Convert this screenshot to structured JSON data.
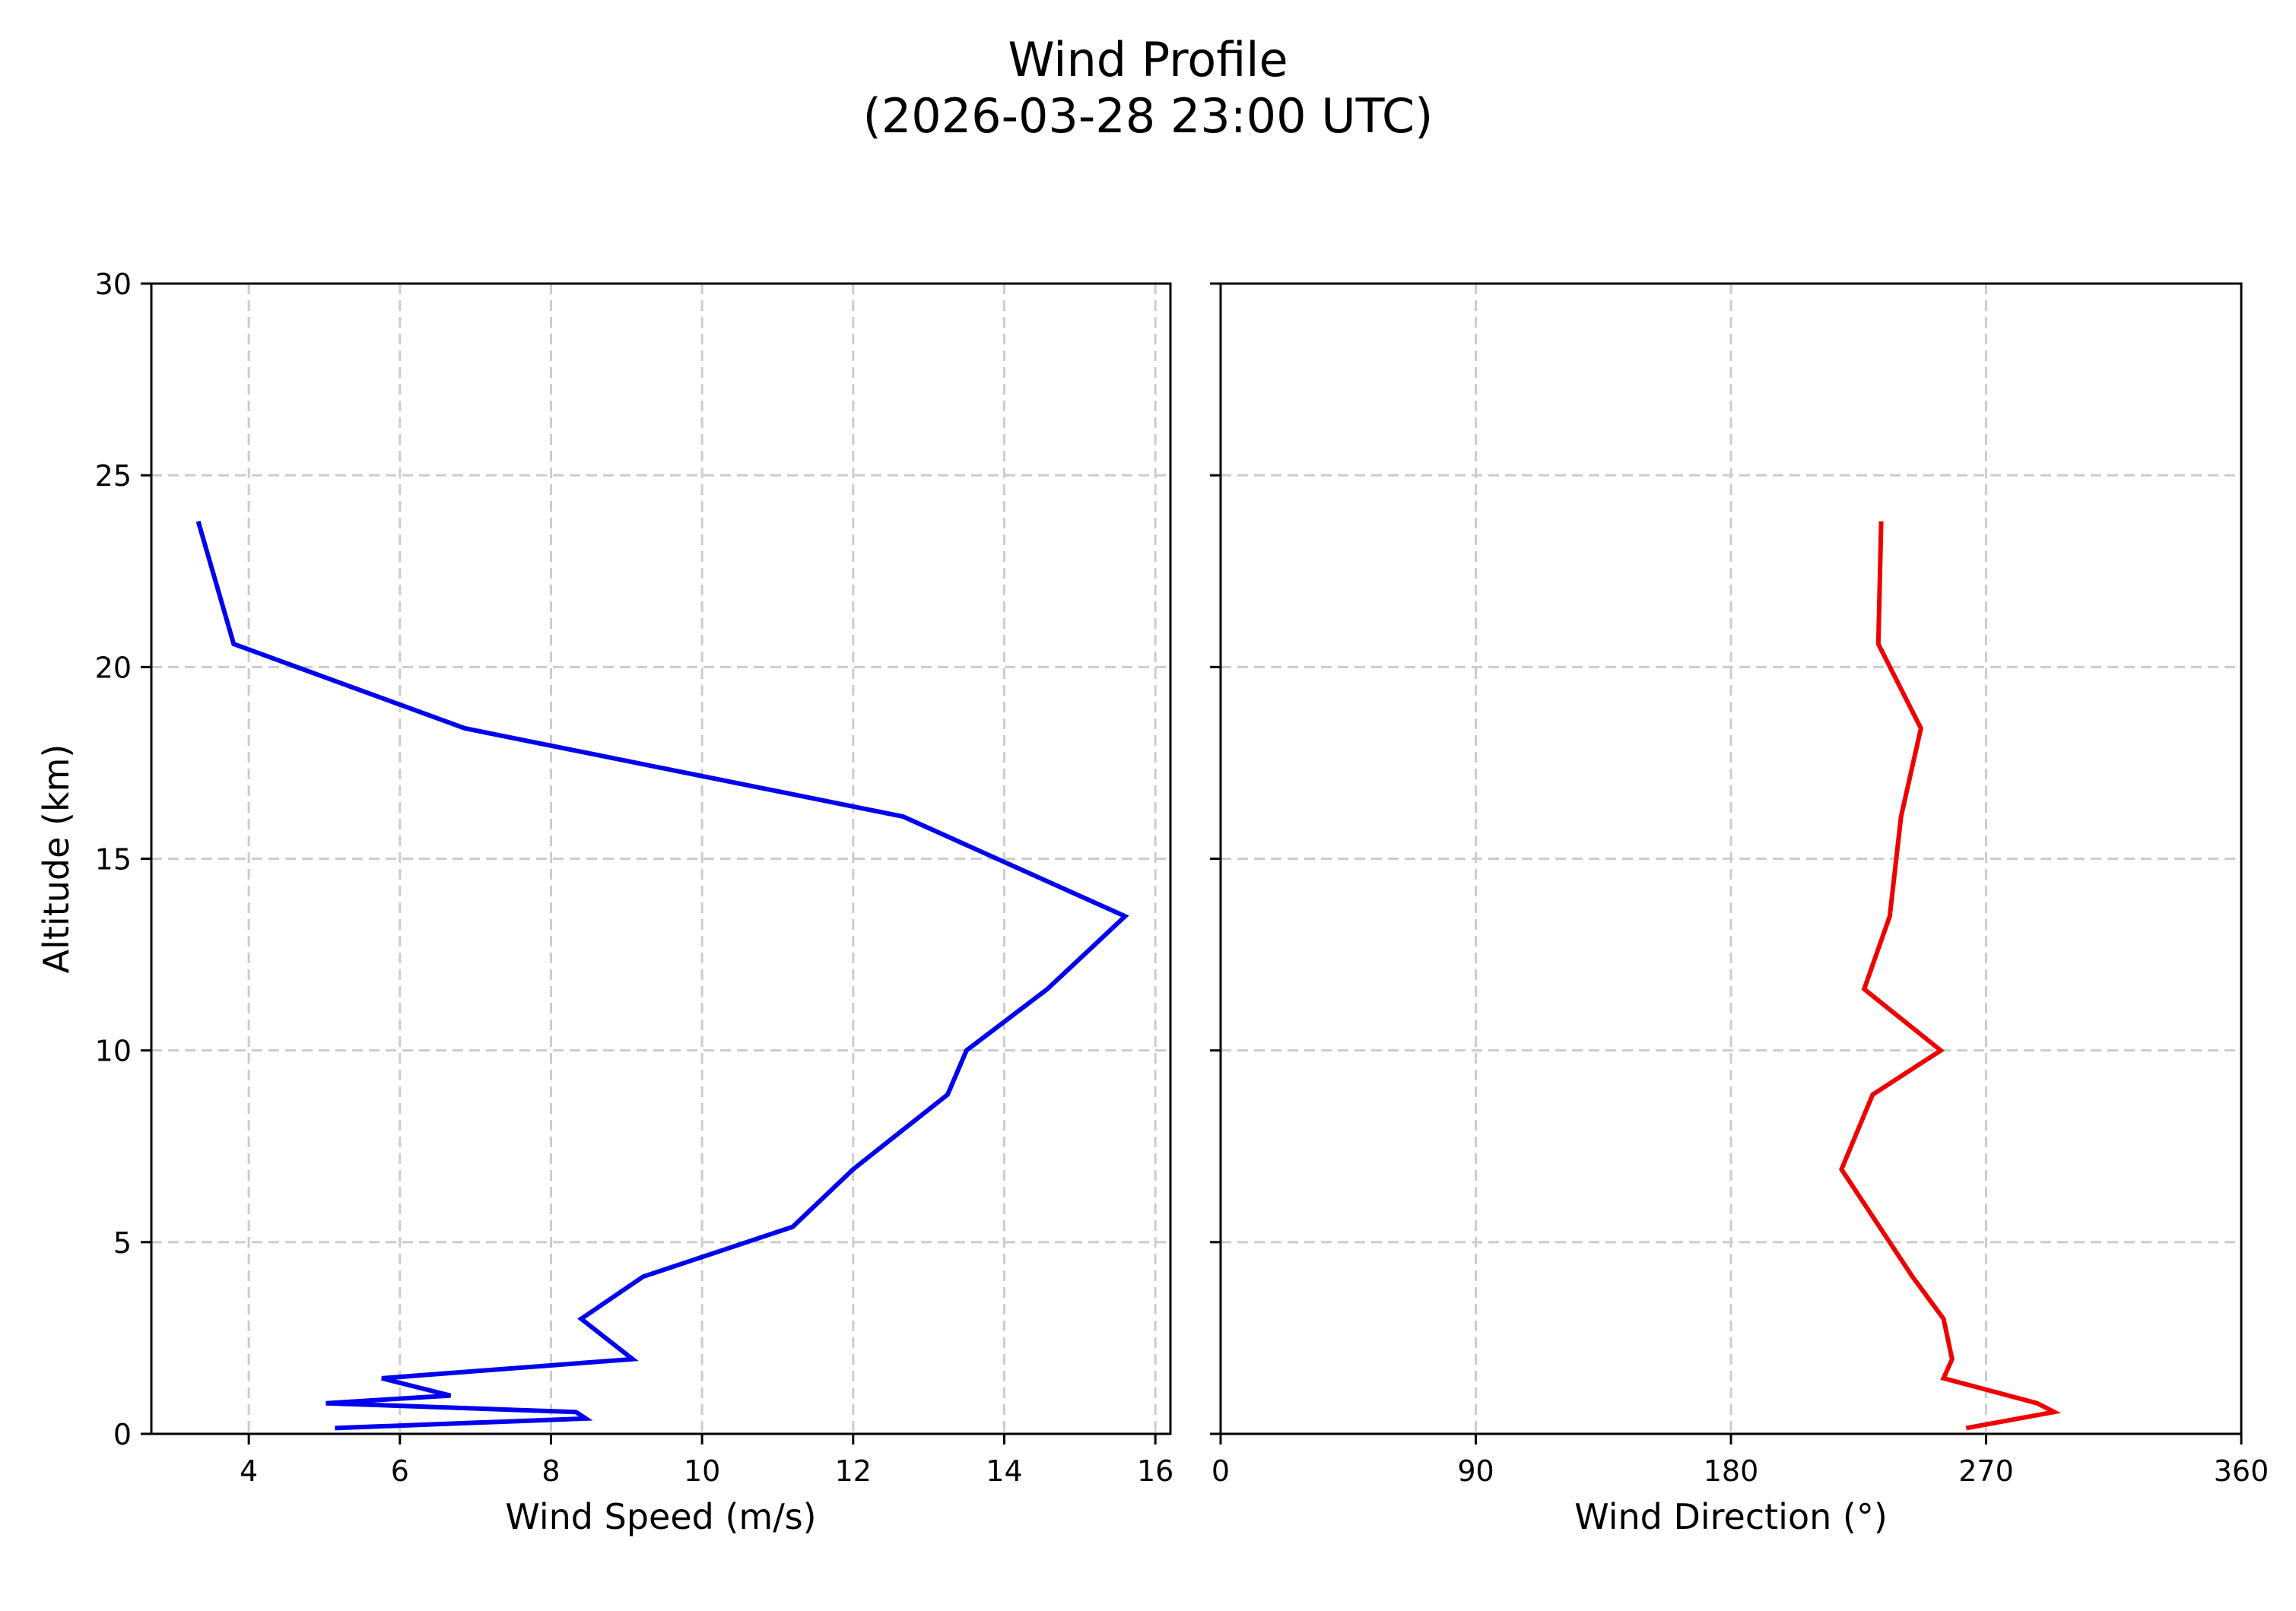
{
  "figure": {
    "title_line1": "Wind Profile",
    "title_line2": "(2026-03-28 23:00 UTC)"
  },
  "chart_data": [
    {
      "type": "line",
      "title": "Wind Profile (2026-03-28 23:00 UTC)",
      "xlabel": "Wind Speed (m/s)",
      "ylabel": "Altitude (km)",
      "xlim": [
        2.71,
        16.2
      ],
      "ylim": [
        0,
        30
      ],
      "xticks": [
        4,
        6,
        8,
        10,
        12,
        14,
        16
      ],
      "yticks": [
        0,
        5,
        10,
        15,
        20,
        25,
        30
      ],
      "grid": true,
      "color": "#0000ee",
      "series": [
        {
          "name": "Wind Speed",
          "x": [
            5.14,
            8.46,
            8.33,
            5.02,
            6.67,
            5.76,
            9.08,
            8.4,
            9.22,
            11.2,
            12.0,
            13.25,
            13.5,
            14.57,
            15.6,
            12.66,
            6.86,
            3.8,
            3.33
          ],
          "y": [
            0.15,
            0.4,
            0.57,
            0.8,
            1.0,
            1.45,
            1.95,
            3.0,
            4.1,
            5.4,
            6.9,
            8.85,
            10.0,
            11.6,
            13.5,
            16.1,
            18.4,
            20.6,
            23.8
          ]
        }
      ]
    },
    {
      "type": "line",
      "xlabel": "Wind Direction (°)",
      "ylabel": "",
      "xlim": [
        0,
        360
      ],
      "ylim": [
        0,
        30
      ],
      "xticks": [
        0,
        90,
        180,
        270,
        360
      ],
      "yticks": [
        0,
        5,
        10,
        15,
        20,
        25,
        30
      ],
      "grid": true,
      "color": "#ee0000",
      "series": [
        {
          "name": "Wind Direction",
          "x": [
            263,
            294,
            288,
            255,
            258,
            255,
            244,
            219,
            230,
            254,
            227,
            236,
            240,
            247,
            232,
            233
          ],
          "y": [
            0.15,
            0.57,
            0.8,
            1.45,
            1.95,
            3.0,
            4.1,
            6.9,
            8.85,
            10.0,
            11.6,
            13.5,
            16.1,
            18.4,
            20.6,
            23.8
          ]
        }
      ]
    }
  ]
}
